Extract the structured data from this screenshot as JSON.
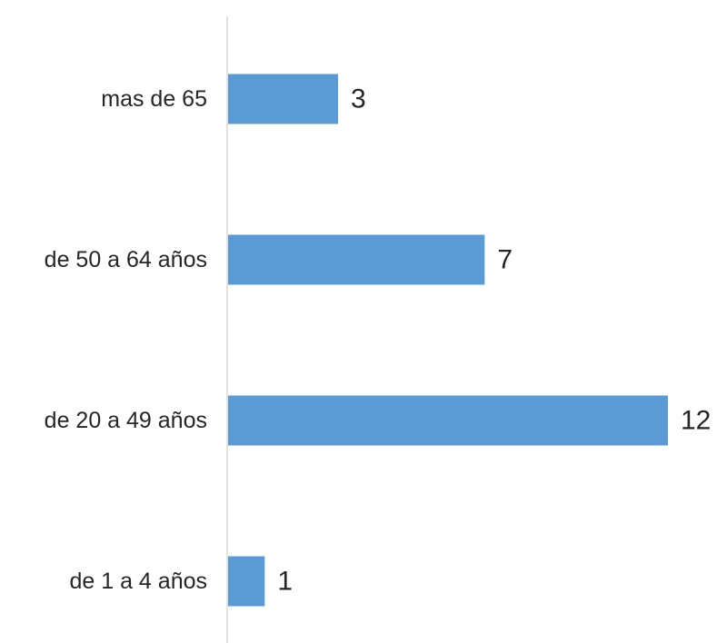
{
  "chart_data": {
    "type": "bar",
    "orientation": "horizontal",
    "categories": [
      "de 1 a 4 años",
      "de 20 a 49 años",
      "de 50 a 64 años",
      "mas de 65"
    ],
    "values": [
      1,
      12,
      7,
      3
    ],
    "title": "",
    "xlabel": "",
    "ylabel": "",
    "xlim": [
      0,
      12
    ],
    "grid": false,
    "legend": "none",
    "data_labels": true,
    "bar_color": "#5b9bd5",
    "axis_color": "#d9d9d9",
    "text_color": "#262626"
  }
}
